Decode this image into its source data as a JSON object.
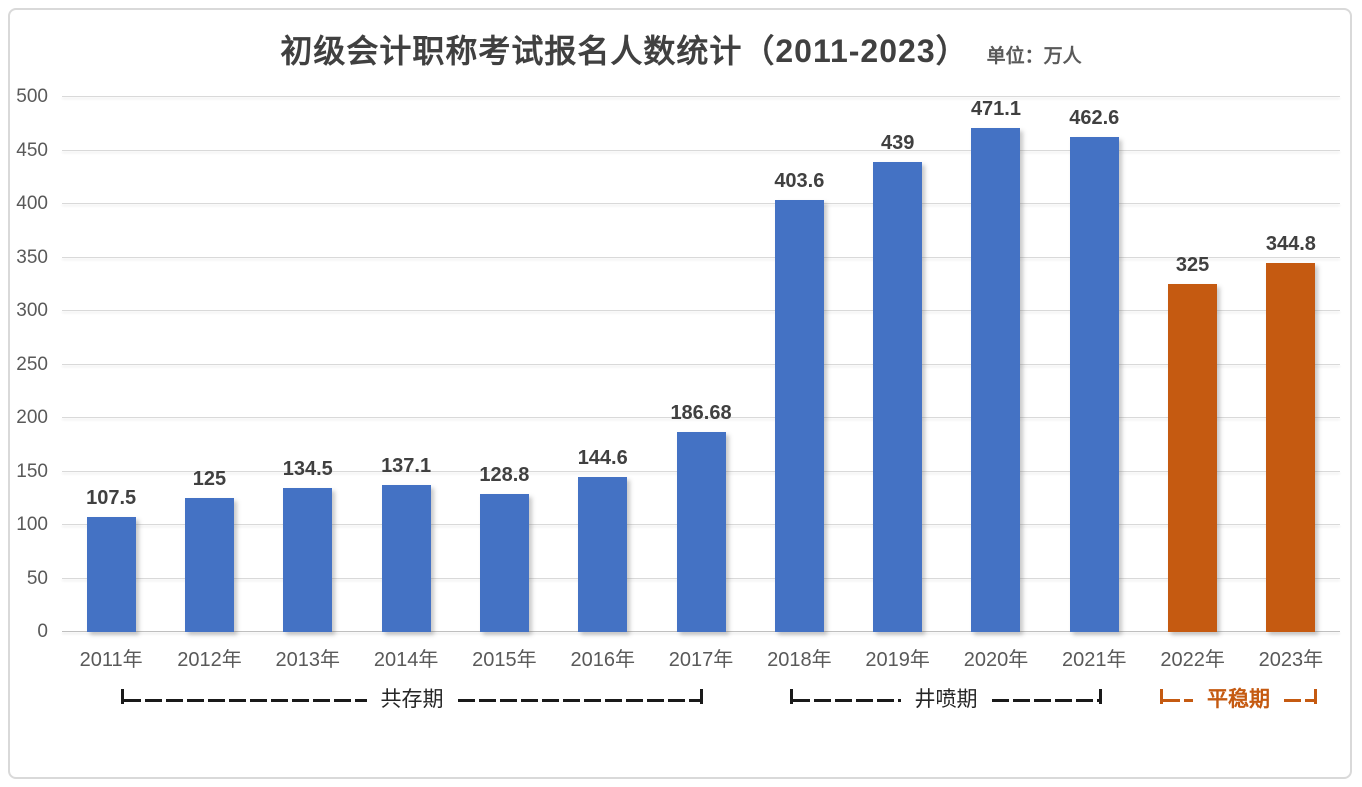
{
  "header": {
    "title": "初级会计职称考试报名人数统计（2011-2023）",
    "unit_label": "单位：万人"
  },
  "chart_data": {
    "type": "bar",
    "title": "初级会计职称考试报名人数统计（2011-2023）",
    "unit": "万人",
    "categories": [
      "2011年",
      "2012年",
      "2013年",
      "2014年",
      "2015年",
      "2016年",
      "2017年",
      "2018年",
      "2019年",
      "2020年",
      "2021年",
      "2022年",
      "2023年"
    ],
    "values": [
      107.5,
      125,
      134.5,
      137.1,
      128.8,
      144.6,
      186.68,
      403.6,
      439,
      471.1,
      462.6,
      325,
      344.8
    ],
    "value_labels": [
      "107.5",
      "125",
      "134.5",
      "137.1",
      "128.8",
      "144.6",
      "186.68",
      "403.6",
      "439",
      "471.1",
      "462.6",
      "325",
      "344.8"
    ],
    "bar_colors": [
      "#4472C4",
      "#4472C4",
      "#4472C4",
      "#4472C4",
      "#4472C4",
      "#4472C4",
      "#4472C4",
      "#4472C4",
      "#4472C4",
      "#4472C4",
      "#4472C4",
      "#C55A11",
      "#C55A11"
    ],
    "colors": {
      "blue": "#4472C4",
      "orange": "#C55A11"
    },
    "xlabel": "",
    "ylabel": "",
    "ylim": [
      0,
      500
    ],
    "yticks": [
      0,
      50,
      100,
      150,
      200,
      250,
      300,
      350,
      400,
      450,
      500
    ],
    "grid": true,
    "legend_position": "none",
    "annotations": [
      {
        "label": "共存期",
        "color": "#1A1A1A",
        "text_color": "#262626",
        "bold": false,
        "from": "2011年",
        "to": "2017年"
      },
      {
        "label": "井喷期",
        "color": "#1A1A1A",
        "text_color": "#262626",
        "bold": false,
        "from": "2018年",
        "to": "2021年"
      },
      {
        "label": "平稳期",
        "color": "#C55A11",
        "text_color": "#C55A11",
        "bold": true,
        "from": "2022年",
        "to": "2023年"
      }
    ]
  }
}
